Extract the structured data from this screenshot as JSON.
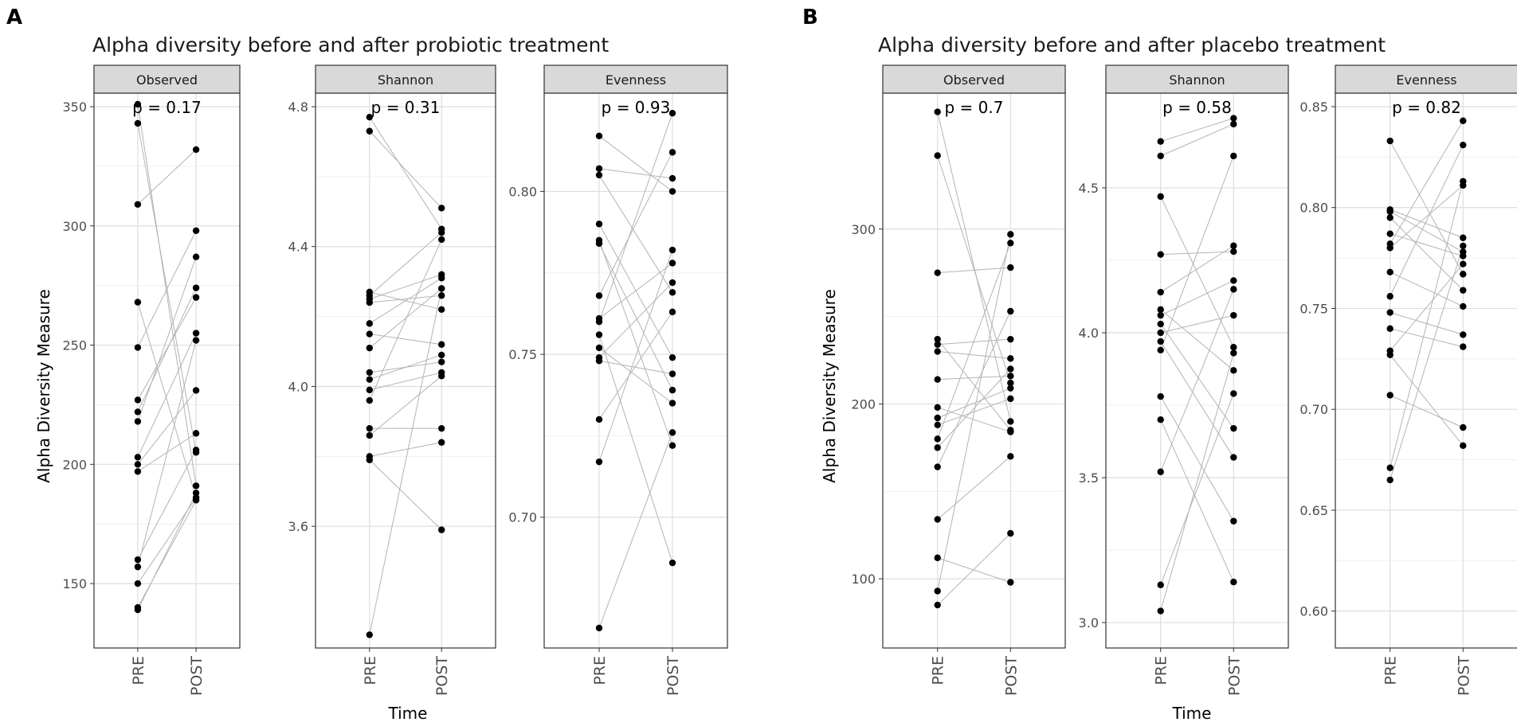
{
  "figure": {
    "labels": {
      "a": "A",
      "b": "B"
    },
    "x_axis_title": "Time",
    "y_axis_title": "Alpha Diversity Measure",
    "time_levels": [
      "PRE",
      "POST"
    ]
  },
  "colors": {
    "strip_fill": "#d9d9d9",
    "grid_major": "#dedede",
    "grid_minor": "#efefef",
    "panel_border": "#333333",
    "line": "#b3b3b3",
    "point": "#000000"
  },
  "chart_data": [
    {
      "type": "scatter",
      "group": "A",
      "title": "Alpha diversity before and after probiotic treatment",
      "facets": [
        {
          "name": "Observed",
          "p_label": "p = 0.17",
          "ylim": [
            130,
            350
          ],
          "ticks": [
            150,
            200,
            250,
            300,
            350
          ],
          "pairs": [
            [
              351,
              191
            ],
            [
              343,
              205
            ],
            [
              309,
              332
            ],
            [
              268,
              186
            ],
            [
              249,
              298
            ],
            [
              227,
              270
            ],
            [
              222,
              274
            ],
            [
              218,
              287
            ],
            [
              203,
              255
            ],
            [
              200,
              231
            ],
            [
              197,
              213
            ],
            [
              160,
              206
            ],
            [
              157,
              252
            ],
            [
              150,
              186
            ],
            [
              140,
              185
            ],
            [
              139,
              188
            ]
          ]
        },
        {
          "name": "Shannon",
          "p_label": "p = 0.31",
          "ylim": [
            3.3,
            4.8
          ],
          "ticks": [
            3.6,
            4.0,
            4.4,
            4.8
          ],
          "pairs": [
            [
              4.77,
              4.45
            ],
            [
              4.73,
              4.51
            ],
            [
              4.27,
              4.22
            ],
            [
              4.26,
              4.44
            ],
            [
              4.25,
              4.32
            ],
            [
              4.24,
              4.26
            ],
            [
              4.18,
              4.31
            ],
            [
              4.15,
              4.12
            ],
            [
              4.11,
              4.28
            ],
            [
              4.04,
              4.07
            ],
            [
              4.02,
              4.09
            ],
            [
              3.99,
              4.04
            ],
            [
              3.96,
              4.42
            ],
            [
              3.88,
              3.88
            ],
            [
              3.86,
              4.03
            ],
            [
              3.8,
              3.84
            ],
            [
              3.79,
              3.59
            ],
            [
              3.29,
              4.28
            ]
          ]
        },
        {
          "name": "Evenness",
          "p_label": "p = 0.93",
          "ylim": [
            0.665,
            0.826
          ],
          "ticks": [
            0.7,
            0.75,
            0.8
          ],
          "pairs": [
            [
              0.817,
              0.8
            ],
            [
              0.807,
              0.804
            ],
            [
              0.805,
              0.769
            ],
            [
              0.79,
              0.749
            ],
            [
              0.785,
              0.722
            ],
            [
              0.784,
              0.739
            ],
            [
              0.768,
              0.812
            ],
            [
              0.761,
              0.778
            ],
            [
              0.76,
              0.824
            ],
            [
              0.756,
              0.686
            ],
            [
              0.752,
              0.735
            ],
            [
              0.749,
              0.772
            ],
            [
              0.748,
              0.744
            ],
            [
              0.73,
              0.763
            ],
            [
              0.717,
              0.782
            ],
            [
              0.666,
              0.726
            ]
          ]
        }
      ]
    },
    {
      "type": "scatter",
      "group": "B",
      "title": "Alpha diversity before and after placebo treatment",
      "facets": [
        {
          "name": "Observed",
          "p_label": "p = 0.7",
          "ylim": [
            70,
            370
          ],
          "ticks": [
            100,
            200,
            300
          ],
          "pairs": [
            [
              367,
              190
            ],
            [
              342,
              212
            ],
            [
              275,
              278
            ],
            [
              237,
              185
            ],
            [
              234,
              237
            ],
            [
              230,
              226
            ],
            [
              214,
              216
            ],
            [
              198,
              184
            ],
            [
              192,
              209
            ],
            [
              188,
              203
            ],
            [
              180,
              292
            ],
            [
              175,
              220
            ],
            [
              164,
              253
            ],
            [
              134,
              170
            ],
            [
              112,
              98
            ],
            [
              93,
              297
            ],
            [
              85,
              126
            ]
          ]
        },
        {
          "name": "Shannon",
          "p_label": "p = 0.58",
          "ylim": [
            2.97,
            4.78
          ],
          "ticks": [
            3.0,
            3.5,
            4.0,
            4.5
          ],
          "pairs": [
            [
              4.66,
              4.74
            ],
            [
              4.61,
              4.72
            ],
            [
              4.47,
              3.95
            ],
            [
              4.27,
              4.28
            ],
            [
              4.14,
              4.3
            ],
            [
              4.08,
              3.87
            ],
            [
              4.06,
              4.18
            ],
            [
              4.03,
              3.67
            ],
            [
              4.0,
              4.06
            ],
            [
              3.97,
              3.57
            ],
            [
              3.94,
              4.61
            ],
            [
              3.78,
              3.35
            ],
            [
              3.7,
              3.14
            ],
            [
              3.52,
              4.15
            ],
            [
              3.13,
              3.79
            ],
            [
              3.04,
              3.93
            ]
          ]
        },
        {
          "name": "Evenness",
          "p_label": "p = 0.82",
          "ylim": [
            0.59,
            0.85
          ],
          "ticks": [
            0.6,
            0.65,
            0.7,
            0.75,
            0.8,
            0.85
          ],
          "pairs": [
            [
              0.833,
              0.767
            ],
            [
              0.799,
              0.785
            ],
            [
              0.798,
              0.778
            ],
            [
              0.795,
              0.759
            ],
            [
              0.787,
              0.776
            ],
            [
              0.782,
              0.843
            ],
            [
              0.78,
              0.811
            ],
            [
              0.768,
              0.751
            ],
            [
              0.756,
              0.831
            ],
            [
              0.748,
              0.737
            ],
            [
              0.74,
              0.731
            ],
            [
              0.729,
              0.772
            ],
            [
              0.727,
              0.682
            ],
            [
              0.707,
              0.691
            ],
            [
              0.671,
              0.813
            ],
            [
              0.665,
              0.781
            ]
          ]
        }
      ]
    }
  ]
}
